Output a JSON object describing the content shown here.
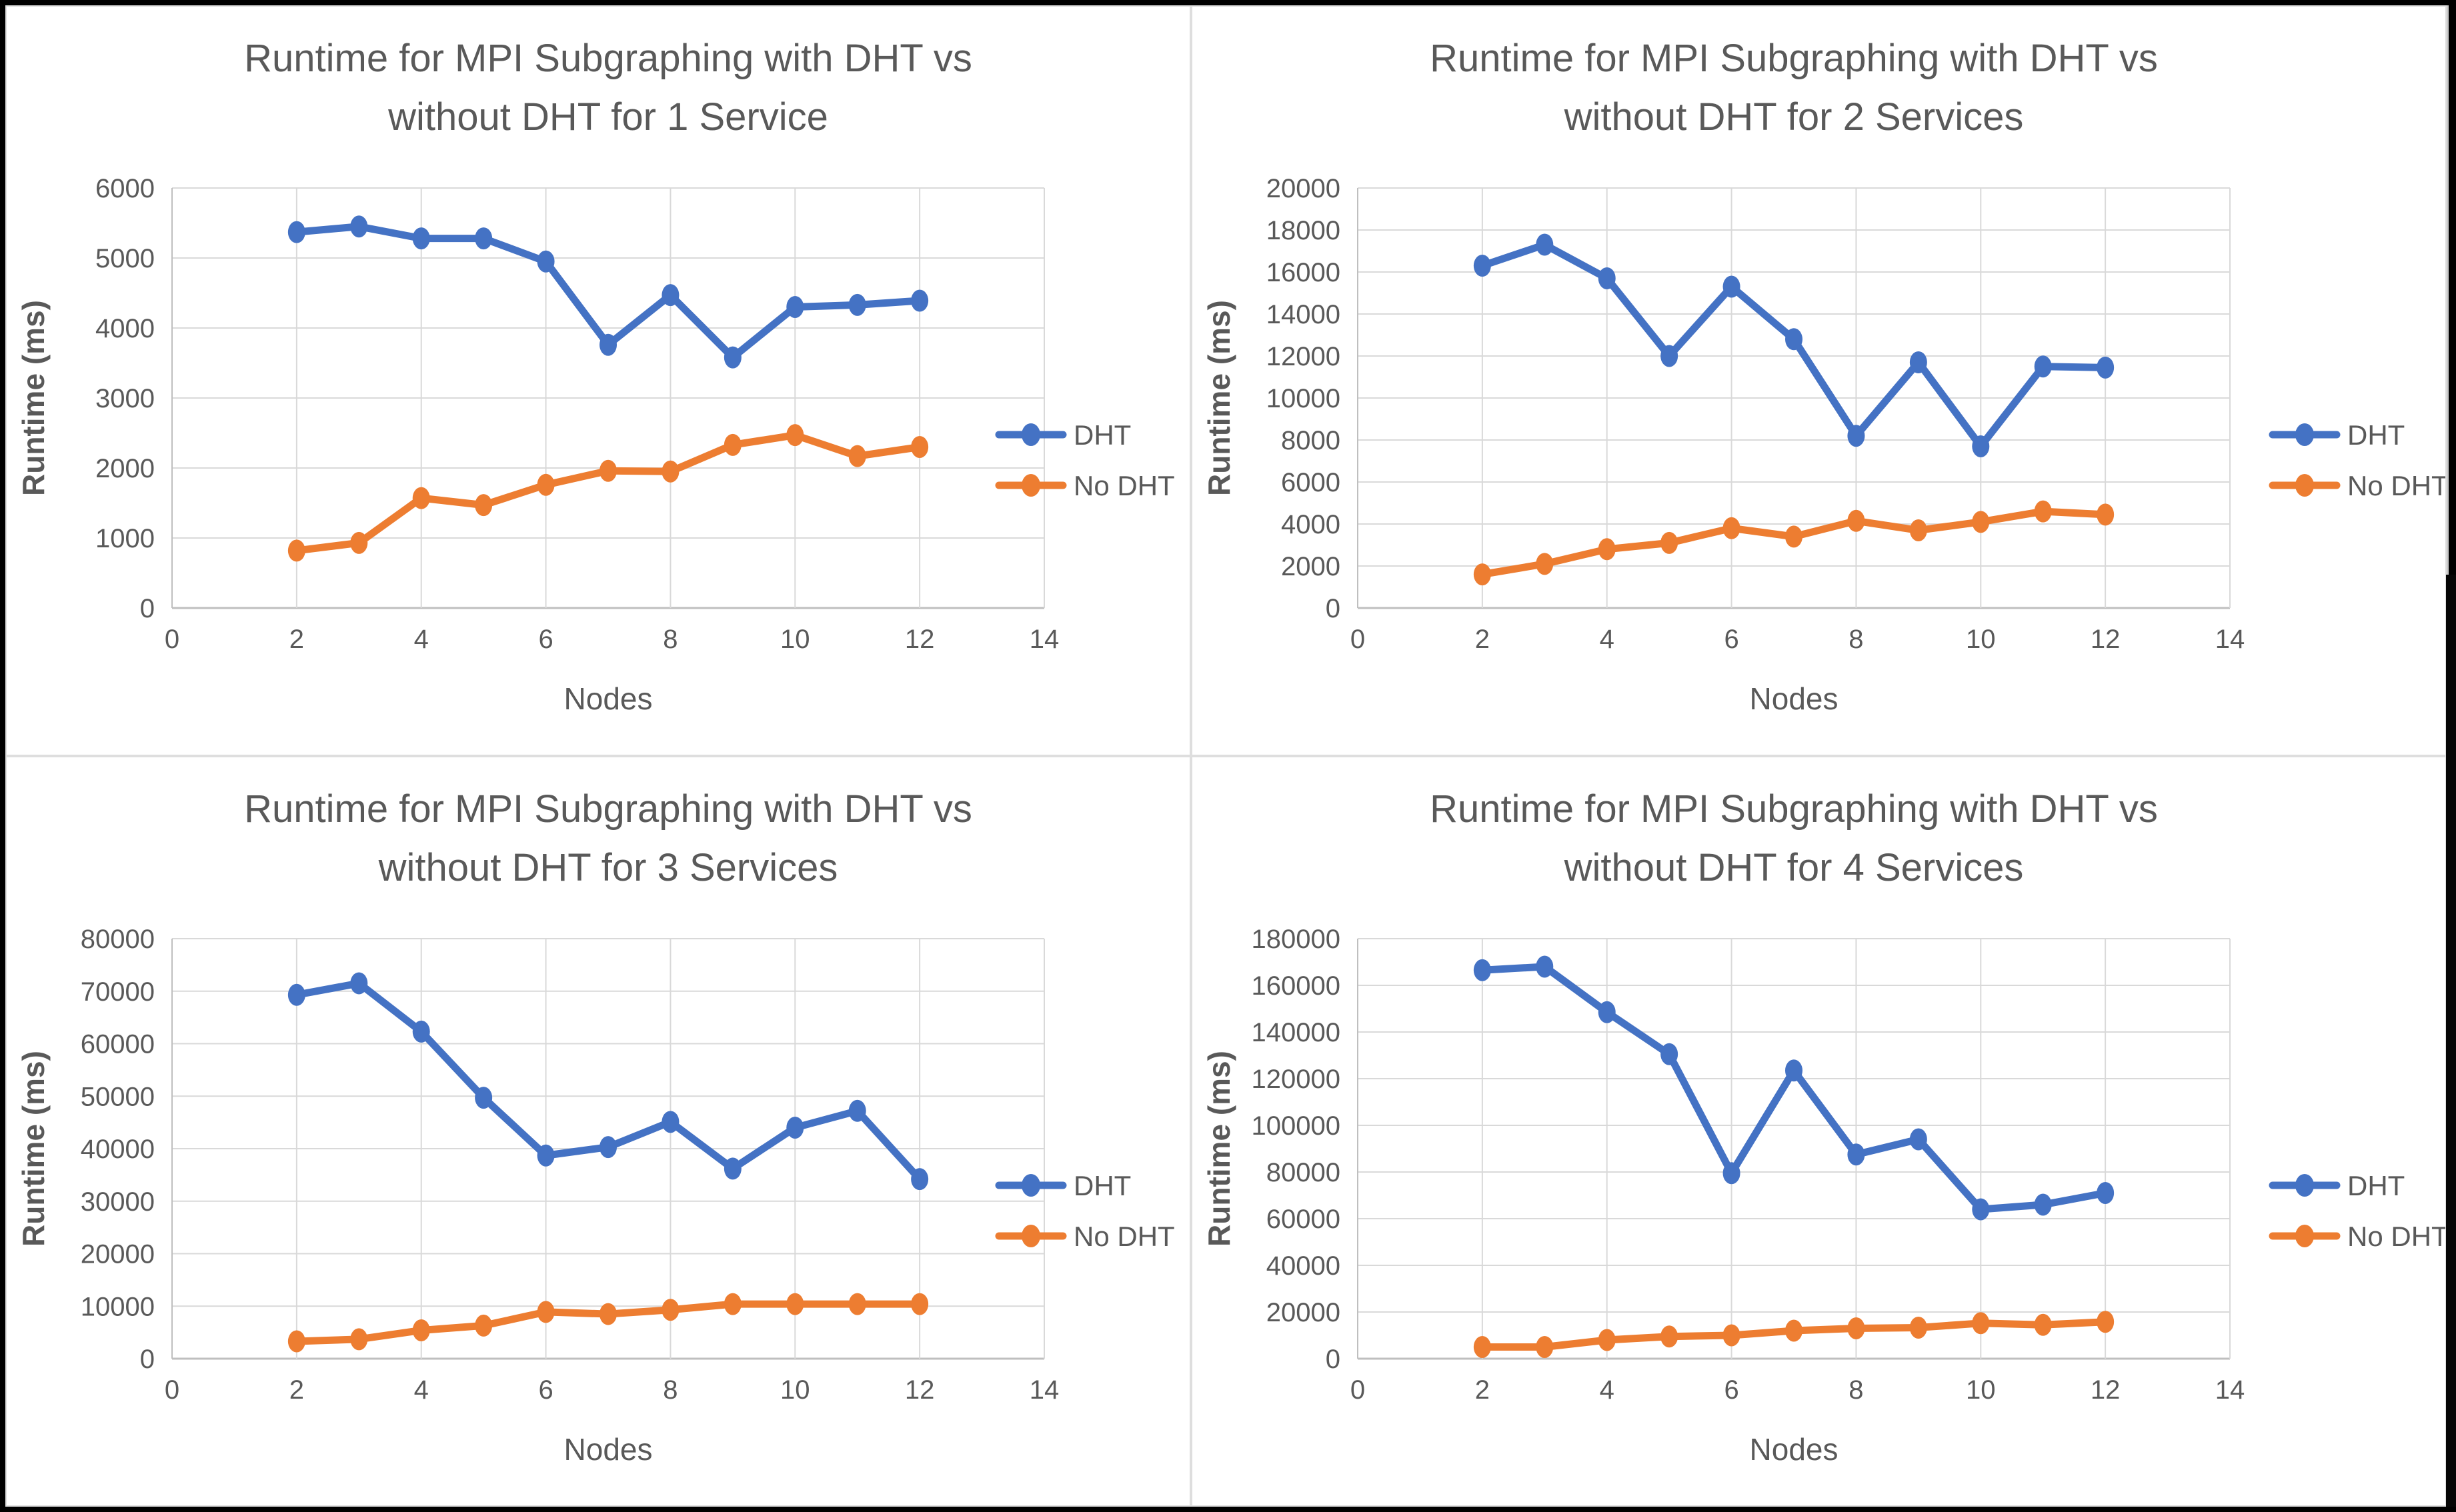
{
  "colors": {
    "dht": "#4472C4",
    "no_dht": "#ED7D31",
    "grid": "#D9D9D9",
    "axis": "#BFBFBF",
    "text": "#595959"
  },
  "chart_data": [
    {
      "type": "line",
      "title_line1": "Runtime for MPI Subgraphing with DHT vs",
      "title_line2": "without DHT for 1 Service",
      "xlabel": "Nodes",
      "ylabel": "Runtime (ms)",
      "x": [
        2,
        3,
        4,
        5,
        6,
        7,
        8,
        9,
        10,
        11,
        12
      ],
      "xlim": [
        0,
        14
      ],
      "xtick_step": 2,
      "ylim": [
        0,
        6000
      ],
      "ytick_step": 1000,
      "grid": true,
      "legend_position": "right",
      "series": [
        {
          "name": "DHT",
          "color": "#4472C4",
          "values": [
            5370,
            5450,
            5280,
            5280,
            4950,
            3760,
            4470,
            3580,
            4300,
            4330,
            4390
          ]
        },
        {
          "name": "No DHT",
          "color": "#ED7D31",
          "values": [
            820,
            930,
            1570,
            1470,
            1760,
            1960,
            1950,
            2330,
            2470,
            2170,
            2300
          ]
        }
      ]
    },
    {
      "type": "line",
      "title_line1": "Runtime for MPI Subgraphing with DHT vs",
      "title_line2": "without DHT for 2 Services",
      "xlabel": "Nodes",
      "ylabel": "Runtime (ms)",
      "x": [
        2,
        3,
        4,
        5,
        6,
        7,
        8,
        9,
        10,
        11,
        12
      ],
      "xlim": [
        0,
        14
      ],
      "xtick_step": 2,
      "ylim": [
        0,
        20000
      ],
      "ytick_step": 2000,
      "grid": true,
      "legend_position": "right",
      "series": [
        {
          "name": "DHT",
          "color": "#4472C4",
          "values": [
            16300,
            17300,
            15700,
            12000,
            15300,
            12800,
            8200,
            11700,
            7700,
            11500,
            11450
          ]
        },
        {
          "name": "No DHT",
          "color": "#ED7D31",
          "values": [
            1600,
            2100,
            2800,
            3100,
            3800,
            3400,
            4150,
            3700,
            4100,
            4600,
            4450
          ]
        }
      ]
    },
    {
      "type": "line",
      "title_line1": "Runtime for MPI Subgraphing with DHT vs",
      "title_line2": "without DHT for 3 Services",
      "xlabel": "Nodes",
      "ylabel": "Runtime (ms)",
      "x": [
        2,
        3,
        4,
        5,
        6,
        7,
        8,
        9,
        10,
        11,
        12
      ],
      "xlim": [
        0,
        14
      ],
      "xtick_step": 2,
      "ylim": [
        0,
        80000
      ],
      "ytick_step": 10000,
      "grid": true,
      "legend_position": "right",
      "series": [
        {
          "name": "DHT",
          "color": "#4472C4",
          "values": [
            69300,
            71500,
            62300,
            49700,
            38700,
            40300,
            45100,
            36200,
            44000,
            47200,
            34200
          ]
        },
        {
          "name": "No DHT",
          "color": "#ED7D31",
          "values": [
            3300,
            3700,
            5400,
            6300,
            8900,
            8500,
            9300,
            10400,
            10400,
            10400,
            10400
          ]
        }
      ]
    },
    {
      "type": "line",
      "title_line1": "Runtime for MPI Subgraphing with DHT vs",
      "title_line2": "without DHT for 4 Services",
      "xlabel": "Nodes",
      "ylabel": "Runtime (ms)",
      "x": [
        2,
        3,
        4,
        5,
        6,
        7,
        8,
        9,
        10,
        11,
        12
      ],
      "xlim": [
        0,
        14
      ],
      "xtick_step": 2,
      "ylim": [
        0,
        180000
      ],
      "ytick_step": 20000,
      "grid": true,
      "legend_position": "right",
      "series": [
        {
          "name": "DHT",
          "color": "#4472C4",
          "values": [
            166500,
            168000,
            148500,
            130500,
            79500,
            123500,
            87500,
            94000,
            64000,
            66000,
            71000
          ]
        },
        {
          "name": "No DHT",
          "color": "#ED7D31",
          "values": [
            5000,
            5000,
            8000,
            9500,
            10000,
            12000,
            13000,
            13300,
            15200,
            14500,
            15800
          ]
        }
      ]
    }
  ]
}
